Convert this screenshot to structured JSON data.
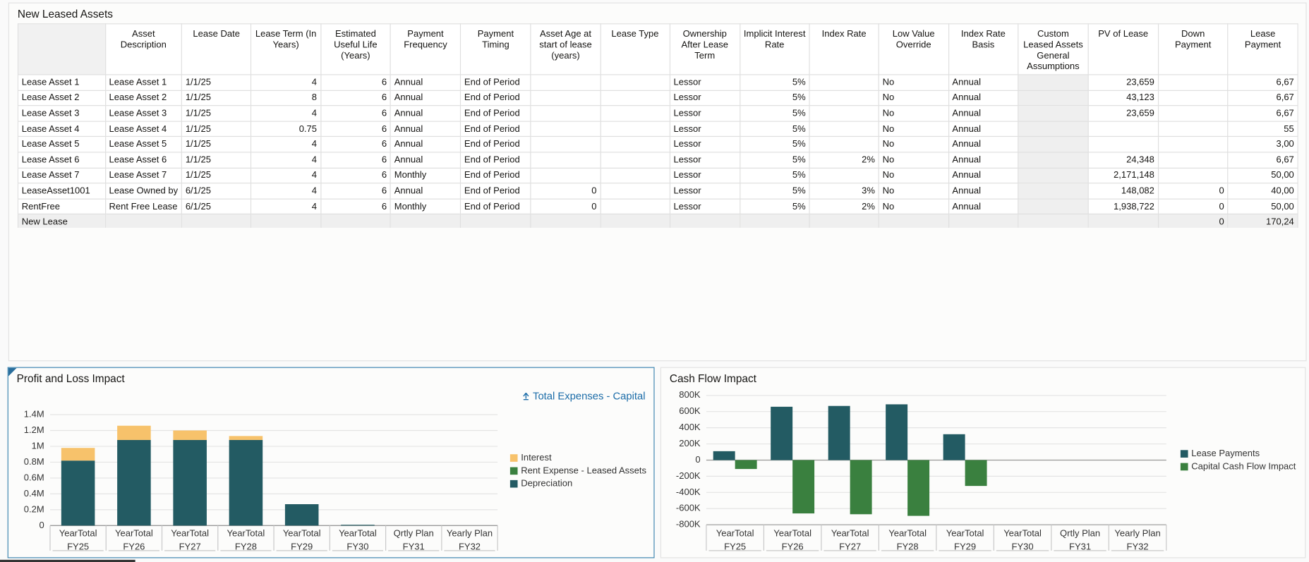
{
  "table": {
    "title": "New Leased Assets",
    "columns": [
      "Asset Description",
      "Lease Date",
      "Lease Term (In Years)",
      "Estimated Useful Life (Years)",
      "Payment Frequency",
      "Payment Timing",
      "Asset Age at start of lease (years)",
      "Lease Type",
      "Ownership After Lease Term",
      "Implicit Interest Rate",
      "Index Rate",
      "Low Value Override",
      "Index Rate Basis",
      "Custom Leased Assets General Assumptions",
      "PV of Lease",
      "Down Payment",
      "Lease Payment"
    ],
    "rows": [
      {
        "label": "Lease Asset 1",
        "cells": [
          "Lease Asset 1",
          "1/1/25",
          "4",
          "6",
          "Annual",
          "End of Period",
          null,
          null,
          "Lessor",
          "5%",
          null,
          "No",
          "Annual",
          null,
          "23,659",
          null,
          "6,67"
        ]
      },
      {
        "label": "Lease Asset 2",
        "cells": [
          "Lease Asset 2",
          "1/1/25",
          "8",
          "6",
          "Annual",
          "End of Period",
          null,
          null,
          "Lessor",
          "5%",
          null,
          "No",
          "Annual",
          null,
          "43,123",
          null,
          "6,67"
        ]
      },
      {
        "label": "Lease Asset 3",
        "cells": [
          "Lease Asset 3",
          "1/1/25",
          "4",
          "6",
          "Annual",
          "End of Period",
          null,
          null,
          "Lessor",
          "5%",
          null,
          "No",
          "Annual",
          null,
          "23,659",
          null,
          "6,67"
        ]
      },
      {
        "label": "Lease Asset 4",
        "cells": [
          "Lease Asset 4",
          "1/1/25",
          "0.75",
          "6",
          "Annual",
          "End of Period",
          null,
          null,
          "Lessor",
          "5%",
          null,
          "No",
          "Annual",
          null,
          null,
          null,
          "55"
        ]
      },
      {
        "label": "Lease Asset 5",
        "cells": [
          "Lease Asset 5",
          "1/1/25",
          "4",
          "6",
          "Annual",
          "End of Period",
          null,
          null,
          "Lessor",
          "5%",
          null,
          "No",
          "Annual",
          null,
          null,
          null,
          "3,00"
        ]
      },
      {
        "label": "Lease Asset 6",
        "cells": [
          "Lease Asset 6",
          "1/1/25",
          "4",
          "6",
          "Annual",
          "End of Period",
          null,
          null,
          "Lessor",
          "5%",
          "2%",
          "No",
          "Annual",
          null,
          "24,348",
          null,
          "6,67"
        ]
      },
      {
        "label": "Lease Asset 7",
        "cells": [
          "Lease Asset 7",
          "1/1/25",
          "4",
          "6",
          "Monthly",
          "End of Period",
          null,
          null,
          "Lessor",
          "5%",
          null,
          "No",
          "Annual",
          null,
          "2,171,148",
          null,
          "50,00"
        ]
      },
      {
        "label": "LeaseAsset1001",
        "cells": [
          "Lease Owned by",
          "6/1/25",
          "4",
          "6",
          "Annual",
          "End of Period",
          "0",
          null,
          "Lessor",
          "5%",
          "3%",
          "No",
          "Annual",
          null,
          "148,082",
          "0",
          "40,00"
        ]
      },
      {
        "label": "RentFree",
        "cells": [
          "Rent Free Lease",
          "6/1/25",
          "4",
          "6",
          "Monthly",
          "End of Period",
          "0",
          null,
          "Lessor",
          "5%",
          "2%",
          "No",
          "Annual",
          null,
          "1,938,722",
          "0",
          "50,00"
        ]
      },
      {
        "label": "New Lease",
        "cells": [
          null,
          null,
          null,
          null,
          null,
          null,
          null,
          null,
          null,
          null,
          null,
          null,
          null,
          null,
          null,
          "0",
          "170,24"
        ]
      }
    ]
  },
  "chart_data": [
    {
      "type": "bar",
      "stacked": true,
      "title": "Profit and Loss Impact",
      "link_text": "Total Expenses - Capital",
      "categories": [
        "YearTotal",
        "YearTotal",
        "YearTotal",
        "YearTotal",
        "YearTotal",
        "YearTotal",
        "Qrtly Plan",
        "Yearly Plan"
      ],
      "category_groups": [
        "FY25",
        "FY26",
        "FY27",
        "FY28",
        "FY29",
        "FY30",
        "FY31",
        "FY32"
      ],
      "series": [
        {
          "name": "Depreciation",
          "color": "#235b63",
          "values": [
            820000,
            1080000,
            1080000,
            1080000,
            270000,
            10000,
            0,
            0
          ]
        },
        {
          "name": "Rent Expense - Leased Assets",
          "color": "#3a803f",
          "values": [
            0,
            0,
            0,
            0,
            0,
            0,
            0,
            0
          ]
        },
        {
          "name": "Interest",
          "color": "#f7c26b",
          "values": [
            160000,
            180000,
            120000,
            50000,
            0,
            0,
            0,
            0
          ]
        }
      ],
      "ylim": [
        0,
        1400000
      ],
      "yticks": [
        0,
        {
          "value": 200000,
          "label": "0.2M"
        },
        {
          "value": 400000,
          "label": "0.4M"
        },
        {
          "value": 600000,
          "label": "0.6M"
        },
        {
          "value": 800000,
          "label": "0.8M"
        },
        {
          "value": 1000000,
          "label": "1M"
        },
        {
          "value": 1200000,
          "label": "1.2M"
        },
        {
          "value": 1400000,
          "label": "1.4M"
        }
      ],
      "grid": true
    },
    {
      "type": "bar",
      "stacked": false,
      "title": "Cash Flow Impact",
      "categories": [
        "YearTotal",
        "YearTotal",
        "YearTotal",
        "YearTotal",
        "YearTotal",
        "YearTotal",
        "Qrtly Plan",
        "Yearly Plan"
      ],
      "category_groups": [
        "FY25",
        "FY26",
        "FY27",
        "FY28",
        "FY29",
        "FY30",
        "FY31",
        "FY32"
      ],
      "series": [
        {
          "name": "Lease Payments",
          "color": "#235b63",
          "values": [
            110000,
            660000,
            670000,
            690000,
            320000,
            0,
            0,
            0
          ]
        },
        {
          "name": "Capital Cash Flow Impact",
          "color": "#3a803f",
          "values": [
            -110000,
            -660000,
            -670000,
            -690000,
            -320000,
            0,
            0,
            0
          ]
        }
      ],
      "ylim": [
        -800000,
        800000
      ],
      "yticks": [
        {
          "value": -800000,
          "label": "-800K"
        },
        {
          "value": -600000,
          "label": "-600K"
        },
        {
          "value": -400000,
          "label": "-400K"
        },
        {
          "value": -200000,
          "label": "-200K"
        },
        0,
        {
          "value": 200000,
          "label": "200K"
        },
        {
          "value": 400000,
          "label": "400K"
        },
        {
          "value": 600000,
          "label": "600K"
        },
        {
          "value": 800000,
          "label": "800K"
        }
      ],
      "grid": true
    }
  ]
}
